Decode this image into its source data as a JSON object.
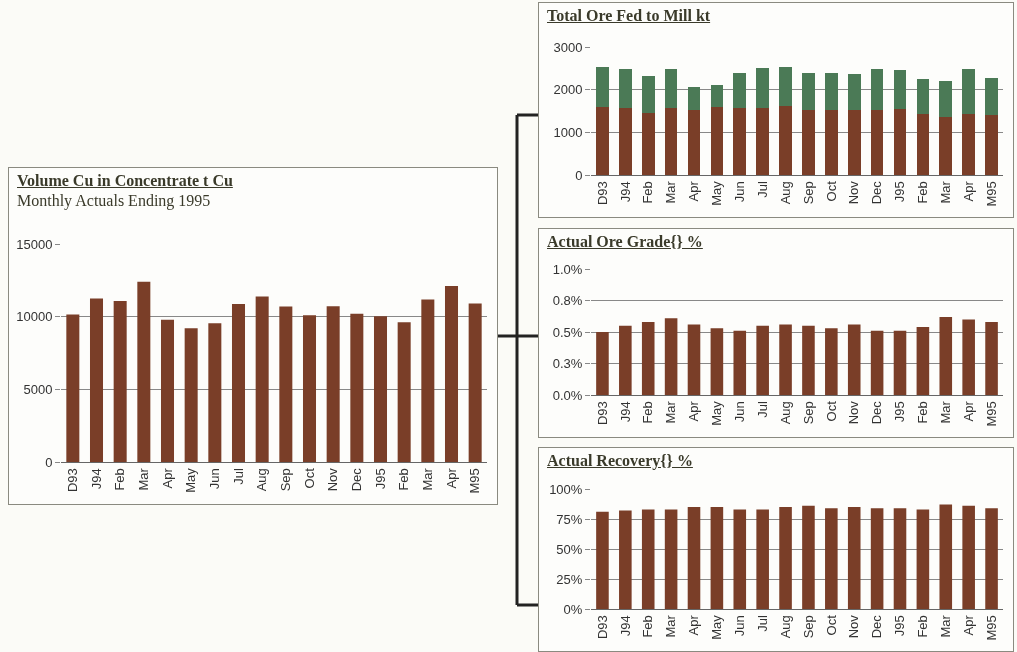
{
  "chart_data": [
    {
      "type": "bar",
      "title": "Volume Cu in Concentrate t Cu",
      "subtitle": "Monthly Actuals Ending 1995",
      "categories": [
        "D93",
        "J94",
        "Feb",
        "Mar",
        "Apr",
        "May",
        "Jun",
        "Jul",
        "Aug",
        "Sep",
        "Oct",
        "Nov",
        "Dec",
        "J95",
        "Feb",
        "Mar",
        "Apr",
        "M95"
      ],
      "values": [
        10150,
        11250,
        11080,
        12400,
        9790,
        9200,
        9550,
        10870,
        11390,
        10700,
        10100,
        10720,
        10200,
        10030,
        9620,
        11180,
        12110,
        10910
      ],
      "color": "#7a3e28",
      "ylim": [
        0,
        15000
      ],
      "yticks": [
        0,
        5000,
        10000,
        15000
      ],
      "grid": "y"
    },
    {
      "type": "bar",
      "title": "Total Ore Fed to Mill kt",
      "stacked": true,
      "categories": [
        "D93",
        "J94",
        "Feb",
        "Mar",
        "Apr",
        "May",
        "Jun",
        "Jul",
        "Aug",
        "Sep",
        "Oct",
        "Nov",
        "Dec",
        "J95",
        "Feb",
        "Mar",
        "Apr",
        "M95"
      ],
      "series": [
        {
          "color": "#7a3e28",
          "values": [
            1590,
            1570,
            1460,
            1560,
            1530,
            1590,
            1570,
            1570,
            1610,
            1520,
            1520,
            1520,
            1520,
            1550,
            1440,
            1350,
            1440,
            1400
          ]
        },
        {
          "color": "#4b7a56",
          "values": [
            950,
            920,
            850,
            930,
            530,
            510,
            820,
            930,
            920,
            880,
            880,
            850,
            960,
            900,
            800,
            860,
            1040,
            870
          ]
        }
      ],
      "ylim": [
        0,
        3000
      ],
      "yticks": [
        0,
        1000,
        2000,
        3000
      ],
      "grid": "y"
    },
    {
      "type": "bar",
      "title": "Actual Ore Grade{} %",
      "categories": [
        "D93",
        "J94",
        "Feb",
        "Mar",
        "Apr",
        "May",
        "Jun",
        "Jul",
        "Aug",
        "Sep",
        "Oct",
        "Nov",
        "Dec",
        "J95",
        "Feb",
        "Mar",
        "Apr",
        "M95"
      ],
      "values": [
        0.5,
        0.55,
        0.58,
        0.61,
        0.56,
        0.53,
        0.51,
        0.55,
        0.56,
        0.55,
        0.53,
        0.56,
        0.51,
        0.51,
        0.54,
        0.62,
        0.6,
        0.58
      ],
      "color": "#7a3e28",
      "ylim": [
        0,
        1
      ],
      "yticks": [
        {
          "value": 0,
          "label": "0.0%"
        },
        {
          "value": 0.25,
          "label": "0.3%"
        },
        {
          "value": 0.5,
          "label": "0.5%"
        },
        {
          "value": 0.75,
          "label": "0.8%"
        },
        {
          "value": 1,
          "label": "1.0%"
        }
      ],
      "grid": "y"
    },
    {
      "type": "bar",
      "title": "Actual Recovery{} %",
      "categories": [
        "D93",
        "J94",
        "Feb",
        "Mar",
        "Apr",
        "May",
        "Jun",
        "Jul",
        "Aug",
        "Sep",
        "Oct",
        "Nov",
        "Dec",
        "J95",
        "Feb",
        "Mar",
        "Apr",
        "M95"
      ],
      "values": [
        81,
        82,
        83,
        83,
        85,
        85,
        83,
        83,
        85,
        86,
        84,
        85,
        84,
        84,
        83,
        87,
        86,
        84
      ],
      "color": "#7a3e28",
      "ylim": [
        0,
        100
      ],
      "yticks": [
        {
          "value": 0,
          "label": "0%"
        },
        {
          "value": 25,
          "label": "25%"
        },
        {
          "value": 50,
          "label": "50%"
        },
        {
          "value": 75,
          "label": "75%"
        },
        {
          "value": 100,
          "label": "100%"
        }
      ],
      "grid": "y"
    }
  ]
}
